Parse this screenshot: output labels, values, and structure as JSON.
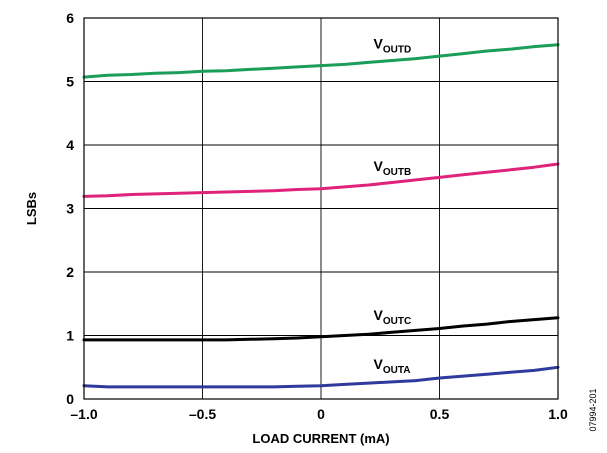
{
  "chart_data": {
    "type": "line",
    "xlabel": "LOAD CURRENT (mA)",
    "ylabel": "LSBs",
    "xlim": [
      -1.0,
      1.0
    ],
    "ylim": [
      0,
      6
    ],
    "x_ticks": [
      "–1.0",
      "–0.5",
      "0",
      "0.5",
      "1.0"
    ],
    "x_tick_values": [
      -1.0,
      -0.5,
      0,
      0.5,
      1.0
    ],
    "y_ticks": [
      "0",
      "1",
      "2",
      "3",
      "4",
      "5",
      "6"
    ],
    "y_tick_values": [
      0,
      1,
      2,
      3,
      4,
      5,
      6
    ],
    "grid": true,
    "figure_id": "07994-201",
    "series": [
      {
        "name": "VOUTD",
        "label_main": "V",
        "label_sub": "OUTD",
        "color": "#1a9e5a",
        "x": [
          -1.0,
          -0.9,
          -0.8,
          -0.7,
          -0.6,
          -0.5,
          -0.4,
          -0.3,
          -0.2,
          -0.1,
          0.0,
          0.1,
          0.2,
          0.3,
          0.4,
          0.5,
          0.6,
          0.7,
          0.8,
          0.9,
          1.0
        ],
        "values": [
          5.07,
          5.1,
          5.11,
          5.13,
          5.14,
          5.16,
          5.17,
          5.19,
          5.21,
          5.23,
          5.25,
          5.27,
          5.3,
          5.33,
          5.36,
          5.4,
          5.44,
          5.48,
          5.51,
          5.55,
          5.58
        ]
      },
      {
        "name": "VOUTB",
        "label_main": "V",
        "label_sub": "OUTB",
        "color": "#e0237a",
        "x": [
          -1.0,
          -0.9,
          -0.8,
          -0.7,
          -0.6,
          -0.5,
          -0.4,
          -0.3,
          -0.2,
          -0.1,
          0.0,
          0.1,
          0.2,
          0.3,
          0.4,
          0.5,
          0.6,
          0.7,
          0.8,
          0.9,
          1.0
        ],
        "values": [
          3.19,
          3.2,
          3.22,
          3.23,
          3.24,
          3.25,
          3.26,
          3.27,
          3.28,
          3.3,
          3.31,
          3.34,
          3.37,
          3.41,
          3.45,
          3.49,
          3.53,
          3.57,
          3.61,
          3.65,
          3.7
        ]
      },
      {
        "name": "VOUTC",
        "label_main": "V",
        "label_sub": "OUTC",
        "color": "#000000",
        "x": [
          -1.0,
          -0.9,
          -0.8,
          -0.7,
          -0.6,
          -0.5,
          -0.4,
          -0.3,
          -0.2,
          -0.1,
          0.0,
          0.1,
          0.2,
          0.3,
          0.4,
          0.5,
          0.6,
          0.7,
          0.8,
          0.9,
          1.0
        ],
        "values": [
          0.93,
          0.93,
          0.93,
          0.93,
          0.93,
          0.93,
          0.93,
          0.94,
          0.95,
          0.96,
          0.98,
          1.0,
          1.02,
          1.05,
          1.08,
          1.11,
          1.15,
          1.18,
          1.22,
          1.25,
          1.28
        ]
      },
      {
        "name": "VOUTA",
        "label_main": "V",
        "label_sub": "OUTA",
        "color": "#2e3a9c",
        "x": [
          -1.0,
          -0.9,
          -0.8,
          -0.7,
          -0.6,
          -0.5,
          -0.4,
          -0.3,
          -0.2,
          -0.1,
          0.0,
          0.1,
          0.2,
          0.3,
          0.4,
          0.5,
          0.6,
          0.7,
          0.8,
          0.9,
          1.0
        ],
        "values": [
          0.21,
          0.19,
          0.19,
          0.19,
          0.19,
          0.19,
          0.19,
          0.19,
          0.19,
          0.2,
          0.21,
          0.23,
          0.25,
          0.27,
          0.29,
          0.33,
          0.36,
          0.39,
          0.42,
          0.45,
          0.5
        ]
      }
    ]
  }
}
